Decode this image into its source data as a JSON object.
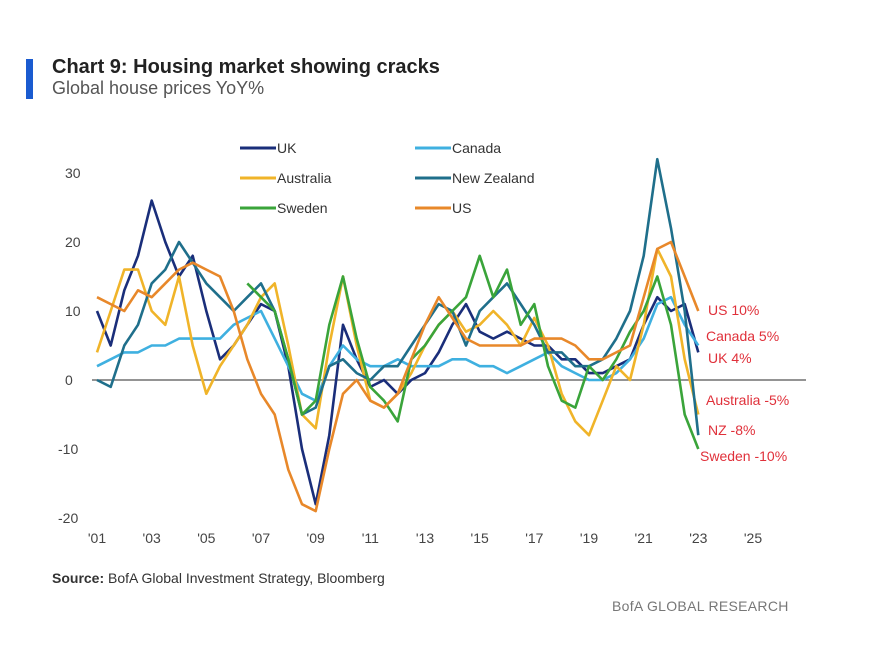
{
  "title": "Chart 9: Housing market showing cracks",
  "subtitle": "Global house prices YoY%",
  "source_label": "Source:",
  "source_text": " BofA Global Investment Strategy, Bloomberg",
  "brand": "BofA GLOBAL RESEARCH",
  "chart_data": {
    "type": "line",
    "title": "Chart 9: Housing market showing cracks",
    "subtitle": "Global house prices YoY%",
    "xlabel": "",
    "ylabel": "YoY %",
    "xlim": [
      2001,
      2025
    ],
    "ylim": [
      -20,
      30
    ],
    "x_ticks": [
      {
        "v": 2001,
        "label": "'01"
      },
      {
        "v": 2003,
        "label": "'03"
      },
      {
        "v": 2005,
        "label": "'05"
      },
      {
        "v": 2007,
        "label": "'07"
      },
      {
        "v": 2009,
        "label": "'09"
      },
      {
        "v": 2011,
        "label": "'11"
      },
      {
        "v": 2013,
        "label": "'13"
      },
      {
        "v": 2015,
        "label": "'15"
      },
      {
        "v": 2017,
        "label": "'17"
      },
      {
        "v": 2019,
        "label": "'19"
      },
      {
        "v": 2021,
        "label": "'21"
      },
      {
        "v": 2023,
        "label": "'23"
      },
      {
        "v": 2025,
        "label": "'25"
      }
    ],
    "y_ticks": [
      {
        "v": 30,
        "label": "30"
      },
      {
        "v": 20,
        "label": "20"
      },
      {
        "v": 10,
        "label": "10"
      },
      {
        "v": 0,
        "label": "0"
      },
      {
        "v": -10,
        "label": "-10"
      },
      {
        "v": -20,
        "label": "-20"
      }
    ],
    "grid": false,
    "legend_position": "top-center",
    "series": [
      {
        "name": "UK",
        "color": "#1a2e7a",
        "x_start": 2001,
        "step": 0.5,
        "values": [
          10,
          5,
          13,
          18,
          26,
          20,
          15,
          18,
          10,
          3,
          5,
          8,
          11,
          10,
          2,
          -10,
          -18,
          -8,
          8,
          3,
          -1,
          0,
          -2,
          0,
          1,
          4,
          8,
          11,
          7,
          6,
          7,
          6,
          5,
          5,
          3,
          3,
          1,
          1,
          2,
          3,
          8,
          12,
          10,
          11,
          4
        ]
      },
      {
        "name": "Canada",
        "color": "#3fb0e0",
        "x_start": 2001,
        "step": 0.5,
        "values": [
          2,
          3,
          4,
          4,
          5,
          5,
          6,
          6,
          6,
          6,
          8,
          9,
          10,
          6,
          2,
          -2,
          -3,
          2,
          5,
          3,
          2,
          2,
          3,
          2,
          2,
          2,
          3,
          3,
          2,
          2,
          1,
          2,
          3,
          4,
          2,
          1,
          0,
          0,
          1,
          3,
          6,
          11,
          12,
          8,
          5
        ]
      },
      {
        "name": "Australia",
        "color": "#f0b429",
        "x_start": 2001,
        "step": 0.5,
        "values": [
          4,
          10,
          16,
          16,
          10,
          8,
          15,
          5,
          -2,
          2,
          5,
          8,
          12,
          14,
          5,
          -5,
          -7,
          5,
          15,
          5,
          -3,
          -4,
          -2,
          1,
          5,
          8,
          10,
          7,
          8,
          10,
          8,
          5,
          9,
          5,
          -2,
          -6,
          -8,
          -3,
          2,
          0,
          8,
          19,
          15,
          3,
          -5
        ]
      },
      {
        "name": "New Zealand",
        "color": "#1f6f8b",
        "x_start": 2001,
        "step": 0.5,
        "values": [
          0,
          -1,
          5,
          8,
          14,
          16,
          20,
          17,
          14,
          12,
          10,
          12,
          14,
          10,
          3,
          -5,
          -4,
          2,
          3,
          1,
          0,
          2,
          2,
          5,
          8,
          11,
          10,
          5,
          10,
          12,
          14,
          11,
          8,
          4,
          4,
          2,
          2,
          3,
          6,
          10,
          18,
          32,
          22,
          10,
          -8
        ]
      },
      {
        "name": "Sweden",
        "color": "#3aa43a",
        "x_start": 2006.5,
        "step": 0.5,
        "values": [
          14,
          12,
          10,
          3,
          -5,
          -3,
          8,
          15,
          6,
          -1,
          -3,
          -6,
          3,
          5,
          8,
          10,
          12,
          18,
          12,
          16,
          8,
          11,
          2,
          -3,
          -4,
          2,
          0,
          3,
          7,
          10,
          15,
          8,
          -5,
          -10
        ]
      },
      {
        "name": "US",
        "color": "#e8882a",
        "x_start": 2001,
        "step": 0.5,
        "values": [
          12,
          11,
          10,
          13,
          12,
          14,
          16,
          17,
          16,
          15,
          10,
          3,
          -2,
          -5,
          -13,
          -18,
          -19,
          -10,
          -2,
          0,
          -3,
          -4,
          -2,
          3,
          8,
          12,
          9,
          6,
          5,
          5,
          5,
          5,
          6,
          6,
          6,
          5,
          3,
          3,
          4,
          5,
          12,
          19,
          20,
          15,
          10
        ]
      }
    ],
    "annotations": [
      {
        "text": "US 10%",
        "value": 10
      },
      {
        "text": "Canada 5%",
        "value": 5
      },
      {
        "text": "UK 4%",
        "value": 4
      },
      {
        "text": "Australia -5%",
        "value": -5
      },
      {
        "text": "NZ -8%",
        "value": -8
      },
      {
        "text": "Sweden -10%",
        "value": -10
      }
    ],
    "annotation_color": "#e0303a"
  }
}
